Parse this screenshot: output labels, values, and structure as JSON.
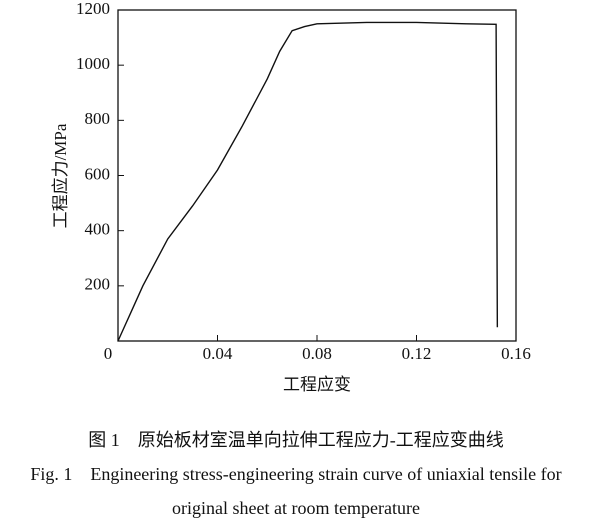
{
  "chart_data": {
    "type": "line",
    "x_label": "工程应变",
    "y_label": "工程应力/MPa",
    "xlim": [
      0,
      0.16
    ],
    "xticks": [
      0,
      0.04,
      0.08,
      0.12,
      0.16
    ],
    "ylim": [
      0,
      1200
    ],
    "yticks": [
      200,
      400,
      600,
      800,
      1000,
      1200
    ],
    "x": [
      0,
      0.005,
      0.01,
      0.02,
      0.03,
      0.04,
      0.05,
      0.06,
      0.065,
      0.07,
      0.075,
      0.08,
      0.1,
      0.12,
      0.14,
      0.152,
      0.1525
    ],
    "series": [
      {
        "color": "#111111",
        "values": [
          0,
          100,
          200,
          370,
          490,
          620,
          780,
          950,
          1050,
          1125,
          1140,
          1150,
          1155,
          1155,
          1150,
          1148,
          50
        ]
      }
    ],
    "caption": [
      "图 1　原始板材室温单向拉伸工程应力-工程应变曲线",
      "Fig. 1　Engineering stress-engineering strain curve of uniaxial tensile for",
      "original sheet at room temperature"
    ]
  }
}
